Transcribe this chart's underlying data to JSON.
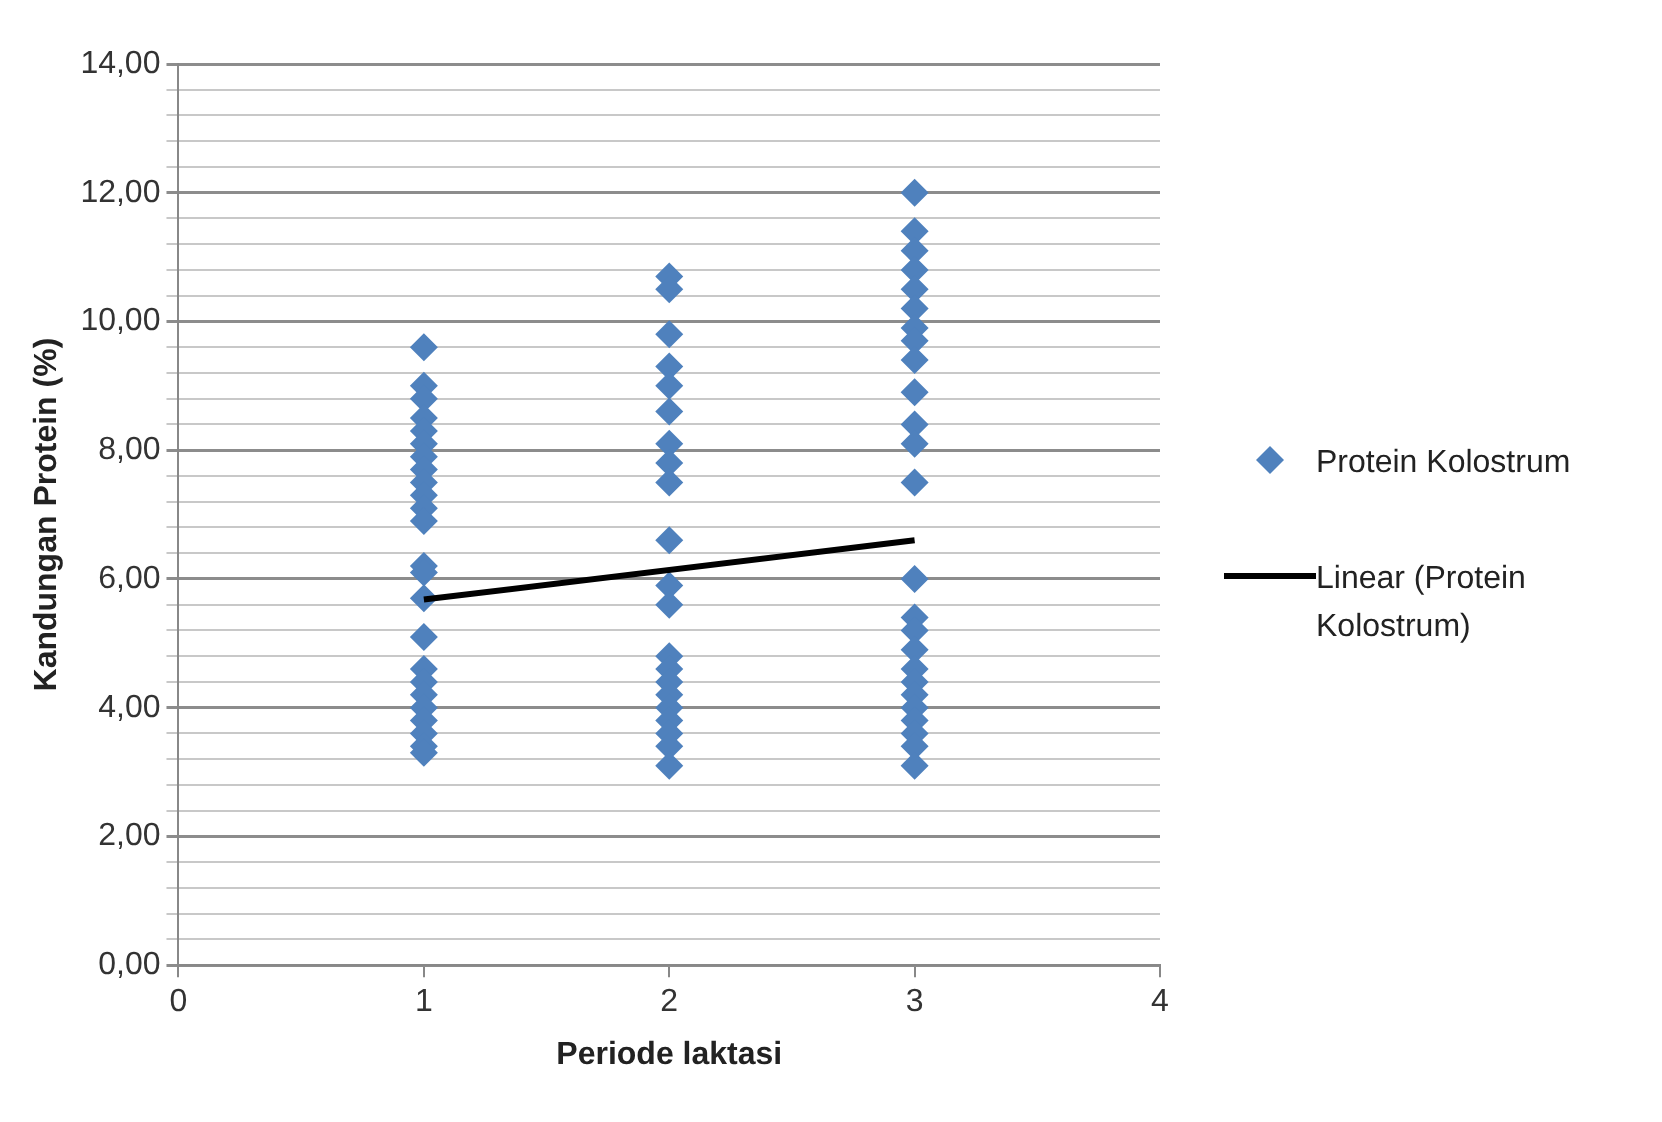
{
  "chart_data": {
    "type": "scatter",
    "xlabel": "Periode laktasi",
    "ylabel": "Kandungan Protein (%)",
    "xlim": [
      0,
      4
    ],
    "xticks": [
      0,
      1,
      2,
      3,
      4
    ],
    "ylim": [
      0,
      14
    ],
    "yticks": [
      {
        "value": 0,
        "label": "0,00"
      },
      {
        "value": 0.4,
        "label": null
      },
      {
        "value": 0.8,
        "label": null
      },
      {
        "value": 1.2,
        "label": null
      },
      {
        "value": 1.6,
        "label": null
      },
      {
        "value": 2,
        "label": "2,00"
      },
      {
        "value": 2.4,
        "label": null
      },
      {
        "value": 2.8,
        "label": null
      },
      {
        "value": 3.2,
        "label": null
      },
      {
        "value": 3.6,
        "label": null
      },
      {
        "value": 4,
        "label": "4,00"
      },
      {
        "value": 4.4,
        "label": null
      },
      {
        "value": 4.8,
        "label": null
      },
      {
        "value": 5.2,
        "label": null
      },
      {
        "value": 5.6,
        "label": null
      },
      {
        "value": 6,
        "label": "6,00"
      },
      {
        "value": 6.4,
        "label": null
      },
      {
        "value": 6.8,
        "label": null
      },
      {
        "value": 7.2,
        "label": null
      },
      {
        "value": 7.6,
        "label": null
      },
      {
        "value": 8,
        "label": "8,00"
      },
      {
        "value": 8.4,
        "label": null
      },
      {
        "value": 8.8,
        "label": null
      },
      {
        "value": 9.2,
        "label": null
      },
      {
        "value": 9.6,
        "label": null
      },
      {
        "value": 10,
        "label": "10,00"
      },
      {
        "value": 10.4,
        "label": null
      },
      {
        "value": 10.8,
        "label": null
      },
      {
        "value": 11.2,
        "label": null
      },
      {
        "value": 11.6,
        "label": null
      },
      {
        "value": 12,
        "label": "12,00"
      },
      {
        "value": 12.4,
        "label": null
      },
      {
        "value": 12.8,
        "label": null
      },
      {
        "value": 13.2,
        "label": null
      },
      {
        "value": 13.6,
        "label": null
      },
      {
        "value": 14,
        "label": "14,00"
      }
    ],
    "grid": "y",
    "legend": "right",
    "series": [
      {
        "name": "Protein Kolostrum",
        "marker": "diamond",
        "color": "#4f81bd",
        "x": [
          1,
          1,
          1,
          1,
          1,
          1,
          1,
          1,
          1,
          1,
          1,
          1,
          1,
          1,
          1,
          1,
          1,
          1,
          1,
          1,
          1,
          1,
          1,
          1,
          2,
          2,
          2,
          2,
          2,
          2,
          2,
          2,
          2,
          2,
          2,
          2,
          2,
          2,
          2,
          2,
          2,
          2,
          2,
          2,
          2,
          3,
          3,
          3,
          3,
          3,
          3,
          3,
          3,
          3,
          3,
          3,
          3,
          3,
          3,
          3,
          3,
          3,
          3,
          3,
          3,
          3,
          3,
          3,
          3,
          3
        ],
        "values": [
          9.6,
          9.0,
          8.8,
          8.5,
          8.3,
          8.1,
          7.9,
          7.7,
          7.5,
          7.3,
          7.1,
          6.9,
          6.2,
          6.1,
          5.7,
          5.1,
          4.6,
          4.4,
          4.2,
          4.0,
          3.8,
          3.6,
          3.4,
          3.3,
          10.7,
          10.5,
          9.8,
          9.3,
          9.0,
          8.6,
          8.1,
          7.8,
          7.5,
          6.6,
          5.9,
          5.6,
          4.8,
          4.6,
          4.4,
          4.2,
          4.0,
          3.8,
          3.6,
          3.4,
          3.1,
          12.0,
          11.4,
          11.1,
          10.8,
          10.5,
          10.2,
          9.9,
          9.7,
          9.4,
          8.9,
          8.4,
          8.1,
          7.5,
          6.0,
          5.4,
          5.2,
          4.9,
          4.6,
          4.4,
          4.2,
          4.0,
          3.8,
          3.6,
          3.4,
          3.1
        ]
      },
      {
        "name": "Linear (Protein Kolostrum)",
        "type": "line",
        "marker": "none",
        "color": "#000000",
        "x": [
          1,
          3
        ],
        "values": [
          5.68,
          6.6
        ]
      }
    ]
  }
}
